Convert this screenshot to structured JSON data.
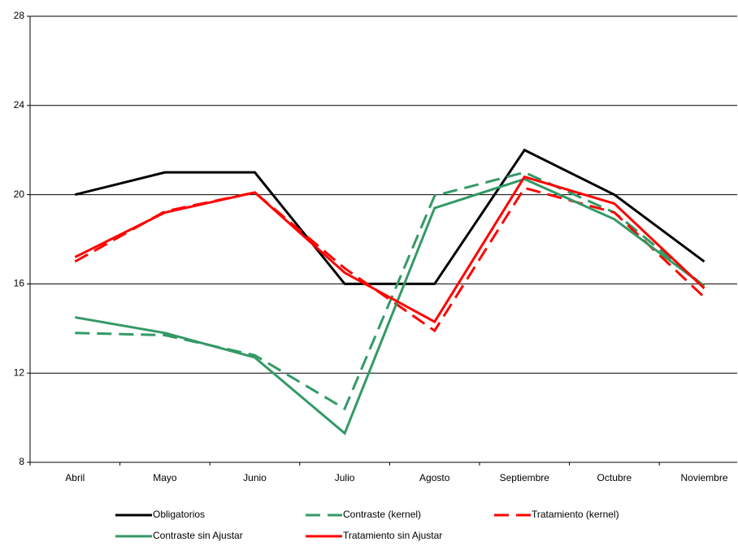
{
  "chart_data": {
    "type": "line",
    "categories": [
      "Abril",
      "Mayo",
      "Junio",
      "Julio",
      "Agosto",
      "Septiembre",
      "Octubre",
      "Noviembre"
    ],
    "series": [
      {
        "name": "Obligatorios",
        "color": "#000000",
        "dashed": false,
        "values": [
          20,
          21,
          21,
          16,
          16,
          22,
          20,
          17
        ]
      },
      {
        "name": "Contraste (kernel)",
        "color": "#339966",
        "dashed": true,
        "values": [
          13.8,
          13.7,
          12.8,
          10.4,
          19.95,
          21.0,
          19.2,
          15.9
        ]
      },
      {
        "name": "Tratamiento (kernel)",
        "color": "#ff0000",
        "dashed": true,
        "values": [
          17.0,
          19.25,
          20.1,
          16.7,
          13.9,
          20.3,
          19.2,
          15.4
        ]
      },
      {
        "name": "Contraste sin Ajustar",
        "color": "#339966",
        "dashed": false,
        "values": [
          14.5,
          13.8,
          12.7,
          9.3,
          19.4,
          20.7,
          18.9,
          15.9
        ]
      },
      {
        "name": "Tratamiento sin Ajustar",
        "color": "#ff0000",
        "dashed": false,
        "values": [
          17.2,
          19.2,
          20.1,
          16.5,
          14.3,
          20.8,
          19.6,
          15.8
        ]
      }
    ],
    "ylim": [
      8,
      28
    ],
    "yticks": [
      8,
      12,
      16,
      20,
      24,
      28
    ],
    "grid": true
  }
}
